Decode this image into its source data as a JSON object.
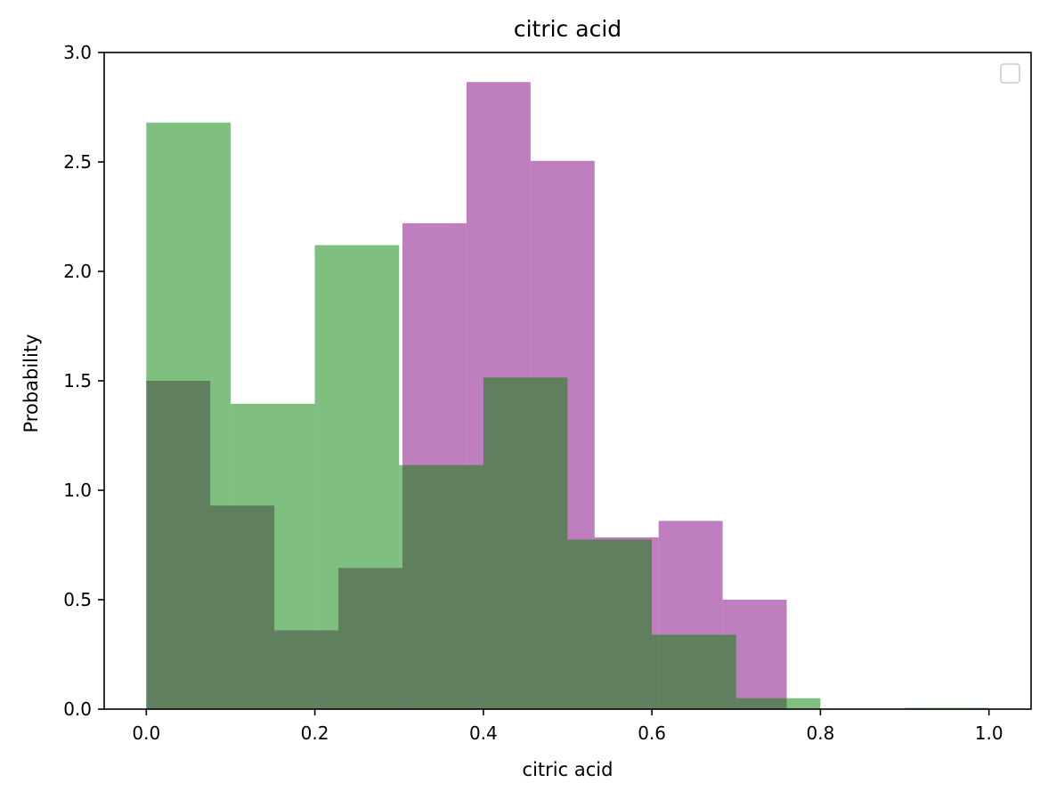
{
  "chart_data": {
    "type": "bar",
    "title": "citric acid",
    "xlabel": "citric acid",
    "ylabel": "Probability",
    "xlim": [
      -0.05,
      1.05
    ],
    "ylim": [
      0,
      3.0
    ],
    "xticks": [
      0.0,
      0.2,
      0.4,
      0.6,
      0.8,
      1.0
    ],
    "xtick_labels": [
      "0.0",
      "0.2",
      "0.4",
      "0.6",
      "0.8",
      "1.0"
    ],
    "yticks": [
      0.0,
      0.5,
      1.0,
      1.5,
      2.0,
      2.5,
      3.0
    ],
    "ytick_labels": [
      "0.0",
      "0.5",
      "1.0",
      "1.5",
      "2.0",
      "2.5",
      "3.0"
    ],
    "grid": false,
    "legend": "top-right (empty)",
    "series": [
      {
        "color": "#800080",
        "opacity": 0.5,
        "bins": [
          {
            "x0": 0.0,
            "x1": 0.076,
            "value": 1.5
          },
          {
            "x0": 0.076,
            "x1": 0.152,
            "value": 0.93
          },
          {
            "x0": 0.152,
            "x1": 0.228,
            "value": 0.36
          },
          {
            "x0": 0.228,
            "x1": 0.304,
            "value": 0.645
          },
          {
            "x0": 0.304,
            "x1": 0.38,
            "value": 2.22
          },
          {
            "x0": 0.38,
            "x1": 0.456,
            "value": 2.865
          },
          {
            "x0": 0.456,
            "x1": 0.532,
            "value": 2.505
          },
          {
            "x0": 0.532,
            "x1": 0.608,
            "value": 0.785
          },
          {
            "x0": 0.608,
            "x1": 0.684,
            "value": 0.86
          },
          {
            "x0": 0.684,
            "x1": 0.76,
            "value": 0.5
          }
        ]
      },
      {
        "color": "#008000",
        "opacity": 0.5,
        "bins": [
          {
            "x0": 0.0,
            "x1": 0.1,
            "value": 2.68
          },
          {
            "x0": 0.1,
            "x1": 0.2,
            "value": 1.395
          },
          {
            "x0": 0.2,
            "x1": 0.3,
            "value": 2.12
          },
          {
            "x0": 0.3,
            "x1": 0.4,
            "value": 1.115
          },
          {
            "x0": 0.4,
            "x1": 0.5,
            "value": 1.515
          },
          {
            "x0": 0.5,
            "x1": 0.6,
            "value": 0.775
          },
          {
            "x0": 0.6,
            "x1": 0.7,
            "value": 0.34
          },
          {
            "x0": 0.7,
            "x1": 0.8,
            "value": 0.05
          },
          {
            "x0": 0.8,
            "x1": 0.9,
            "value": 0.0
          },
          {
            "x0": 0.9,
            "x1": 1.0,
            "value": 0.006
          }
        ]
      }
    ]
  }
}
